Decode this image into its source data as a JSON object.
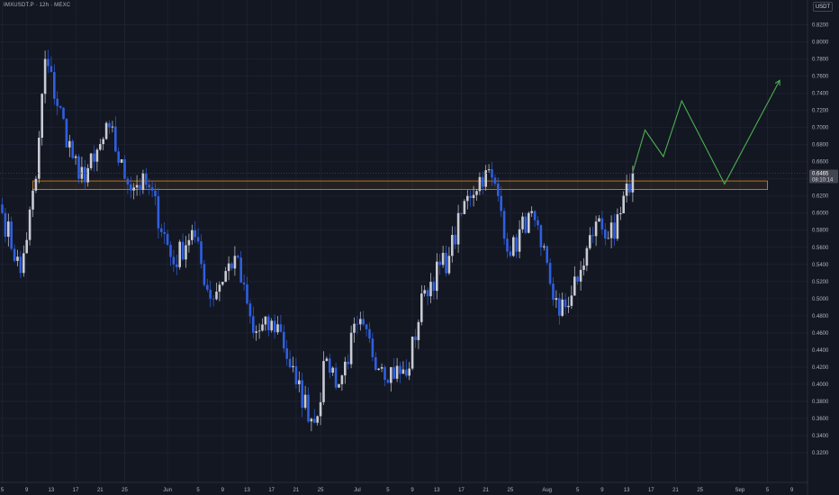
{
  "header": {
    "symbol": "IMXUSDT.P · 12h · MEXC",
    "currency": "USDT"
  },
  "colors": {
    "background": "#131722",
    "grid": "#1c2030",
    "bull_candle": "#c8cbd2",
    "bear_candle": "#2f5fe0",
    "zone_border": "#e08a1e",
    "forecast": "#4caf50",
    "price_tag": "#434651"
  },
  "chart_data": {
    "type": "candlestick",
    "timeframe": "12h",
    "ylim": [
      0.31,
      0.83
    ],
    "price_axis": {
      "ticks": [
        0.32,
        0.34,
        0.36,
        0.38,
        0.4,
        0.42,
        0.44,
        0.46,
        0.48,
        0.5,
        0.52,
        0.54,
        0.56,
        0.58,
        0.6,
        0.62,
        0.64,
        0.66,
        0.68,
        0.7,
        0.72,
        0.74,
        0.76,
        0.78,
        0.8,
        0.82
      ],
      "tick_labels": [
        "0.3200",
        "0.3400",
        "0.3600",
        "0.3800",
        "0.4000",
        "0.4200",
        "0.4400",
        "0.4600",
        "0.4800",
        "0.5000",
        "0.5200",
        "0.5400",
        "0.5600",
        "0.5800",
        "0.6000",
        "0.6200",
        "0.6400",
        "0.6600",
        "0.6800",
        "0.7000",
        "0.7200",
        "0.7400",
        "0.7600",
        "0.7800",
        "0.8000",
        "0.8200"
      ]
    },
    "time_axis": {
      "labels": [
        "5",
        "9",
        "13",
        "17",
        "21",
        "25",
        "Jun",
        "5",
        "9",
        "13",
        "17",
        "21",
        "25",
        "Jul",
        "5",
        "9",
        "13",
        "17",
        "21",
        "25",
        "Aug",
        "5",
        "9",
        "13",
        "17",
        "21",
        "25",
        "Sep",
        "5",
        "9"
      ],
      "bar_index": [
        0,
        8,
        16,
        24,
        32,
        40,
        54,
        64,
        72,
        80,
        88,
        96,
        104,
        116,
        126,
        134,
        142,
        150,
        158,
        166,
        178,
        188,
        196,
        204,
        212,
        220,
        228,
        241,
        250,
        258
      ]
    },
    "last_price": {
      "price": "0.6465",
      "countdown": "08:10:14",
      "value": 0.6465
    },
    "resistance_zone": {
      "top": 0.6375,
      "bottom": 0.6275,
      "start_bar": 10,
      "end_bar": 250
    },
    "forecast_path": [
      {
        "bar": 206,
        "price": 0.648
      },
      {
        "bar": 210,
        "price": 0.697
      },
      {
        "bar": 216,
        "price": 0.666
      },
      {
        "bar": 222,
        "price": 0.731
      },
      {
        "bar": 236,
        "price": 0.634
      },
      {
        "bar": 254,
        "price": 0.755
      }
    ],
    "key_points": [
      {
        "bar": 0,
        "price": 0.6
      },
      {
        "bar": 6,
        "price": 0.53
      },
      {
        "bar": 11,
        "price": 0.64
      },
      {
        "bar": 14,
        "price": 0.78
      },
      {
        "bar": 25,
        "price": 0.64
      },
      {
        "bar": 30,
        "price": 0.66
      },
      {
        "bar": 35,
        "price": 0.7
      },
      {
        "bar": 40,
        "price": 0.64
      },
      {
        "bar": 48,
        "price": 0.63
      },
      {
        "bar": 56,
        "price": 0.54
      },
      {
        "bar": 62,
        "price": 0.58
      },
      {
        "bar": 68,
        "price": 0.5
      },
      {
        "bar": 76,
        "price": 0.55
      },
      {
        "bar": 82,
        "price": 0.46
      },
      {
        "bar": 90,
        "price": 0.47
      },
      {
        "bar": 96,
        "price": 0.4
      },
      {
        "bar": 102,
        "price": 0.355
      },
      {
        "bar": 106,
        "price": 0.43
      },
      {
        "bar": 110,
        "price": 0.4
      },
      {
        "bar": 116,
        "price": 0.47
      },
      {
        "bar": 124,
        "price": 0.42
      },
      {
        "bar": 132,
        "price": 0.41
      },
      {
        "bar": 138,
        "price": 0.51
      },
      {
        "bar": 146,
        "price": 0.55
      },
      {
        "bar": 152,
        "price": 0.62
      },
      {
        "bar": 158,
        "price": 0.65
      },
      {
        "bar": 162,
        "price": 0.62
      },
      {
        "bar": 166,
        "price": 0.55
      },
      {
        "bar": 172,
        "price": 0.6
      },
      {
        "bar": 176,
        "price": 0.56
      },
      {
        "bar": 182,
        "price": 0.48
      },
      {
        "bar": 188,
        "price": 0.52
      },
      {
        "bar": 194,
        "price": 0.59
      },
      {
        "bar": 200,
        "price": 0.57
      },
      {
        "bar": 206,
        "price": 0.6465
      }
    ]
  }
}
